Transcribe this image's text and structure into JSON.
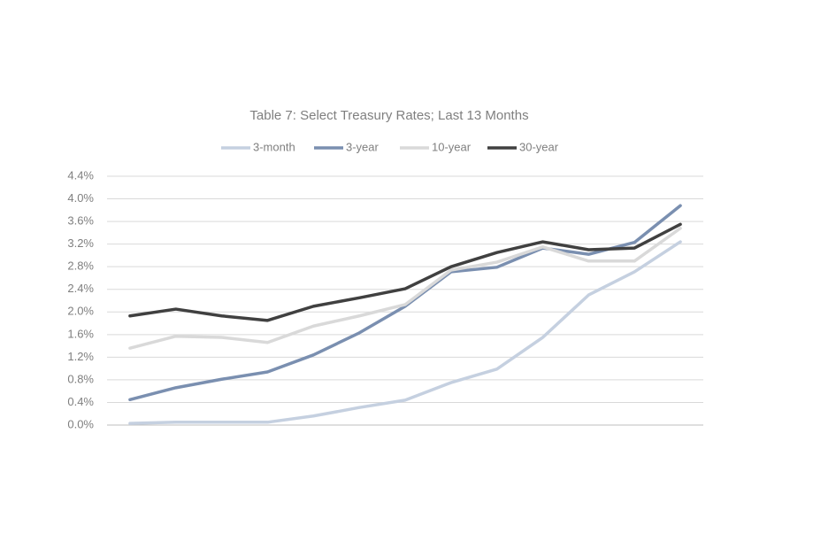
{
  "chart_data": {
    "type": "line",
    "title": "Table 7: Select Treasury Rates; Last 13 Months",
    "categories": [
      null,
      null,
      null,
      null,
      null,
      null,
      null,
      null,
      null,
      null,
      null,
      null,
      null
    ],
    "series": [
      {
        "name": "3-month",
        "color": "#c5d0e0",
        "values": [
          0.03,
          0.05,
          0.05,
          0.05,
          0.16,
          0.31,
          0.44,
          0.75,
          0.99,
          1.55,
          2.3,
          2.71,
          3.24
        ]
      },
      {
        "name": "3-year",
        "color": "#7a8fb0",
        "values": [
          0.45,
          0.66,
          0.81,
          0.94,
          1.24,
          1.63,
          2.1,
          2.71,
          2.79,
          3.13,
          3.02,
          3.23,
          3.88
        ]
      },
      {
        "name": "10-year",
        "color": "#d9d9d9",
        "values": [
          1.36,
          1.57,
          1.55,
          1.46,
          1.75,
          1.93,
          2.13,
          2.74,
          2.88,
          3.15,
          2.9,
          2.9,
          3.48
        ]
      },
      {
        "name": "30-year",
        "color": "#404040",
        "values": [
          1.93,
          2.05,
          1.93,
          1.85,
          2.1,
          2.25,
          2.41,
          2.8,
          3.05,
          3.24,
          3.1,
          3.13,
          3.55
        ]
      }
    ],
    "ylim": [
      0,
      4.4
    ],
    "yticks": [
      {
        "value": 0,
        "label": "0.0%"
      },
      {
        "value": 0.4,
        "label": "0.4%"
      },
      {
        "value": 0.8,
        "label": "0.8%"
      },
      {
        "value": 1.2,
        "label": "1.2%"
      },
      {
        "value": 1.6,
        "label": "1.6%"
      },
      {
        "value": 2.0,
        "label": "2.0%"
      },
      {
        "value": 2.4,
        "label": "2.4%"
      },
      {
        "value": 2.8,
        "label": "2.8%"
      },
      {
        "value": 3.2,
        "label": "3.2%"
      },
      {
        "value": 3.6,
        "label": "3.6%"
      },
      {
        "value": 4.0,
        "label": "4.0%"
      },
      {
        "value": 4.4,
        "label": "4.4%"
      }
    ],
    "grid": true,
    "legend": "top"
  }
}
